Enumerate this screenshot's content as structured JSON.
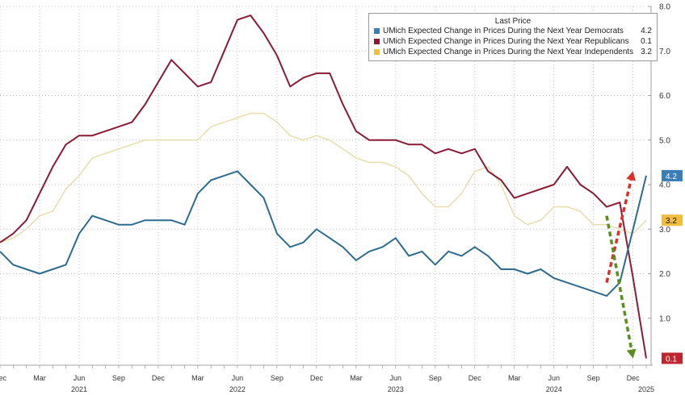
{
  "chart_data": {
    "type": "line",
    "legend_title": "Last Price",
    "legend_position": "top-right",
    "grid": true,
    "ylim": [
      0,
      8
    ],
    "y_ticks": [
      "1.0",
      "2.0",
      "3.0",
      "4.0",
      "5.0",
      "6.0",
      "7.0",
      "8.0"
    ],
    "x_start": "2020-12",
    "x_end": "2025-01",
    "x_tick_labels": [
      {
        "date": "2020-12",
        "label": "Dec"
      },
      {
        "date": "2021-03",
        "label": "Mar"
      },
      {
        "date": "2021-06",
        "label": "Jun"
      },
      {
        "date": "2021-09",
        "label": "Sep"
      },
      {
        "date": "2021-12",
        "label": "Dec"
      },
      {
        "date": "2022-03",
        "label": "Mar"
      },
      {
        "date": "2022-06",
        "label": "Jun"
      },
      {
        "date": "2022-09",
        "label": "Sep"
      },
      {
        "date": "2022-12",
        "label": "Dec"
      },
      {
        "date": "2023-03",
        "label": "Mar"
      },
      {
        "date": "2023-06",
        "label": "Jun"
      },
      {
        "date": "2023-09",
        "label": "Sep"
      },
      {
        "date": "2023-12",
        "label": "Dec"
      },
      {
        "date": "2024-03",
        "label": "Mar"
      },
      {
        "date": "2024-06",
        "label": "Jun"
      },
      {
        "date": "2024-09",
        "label": "Sep"
      },
      {
        "date": "2024-12",
        "label": "Dec"
      }
    ],
    "year_labels": [
      {
        "date": "2021-06",
        "label": "2021"
      },
      {
        "date": "2022-06",
        "label": "2022"
      },
      {
        "date": "2023-06",
        "label": "2023"
      },
      {
        "date": "2024-06",
        "label": "2024"
      },
      {
        "date": "2025-01",
        "label": "2025"
      }
    ],
    "series": [
      {
        "name": "UMich Expected Change in Prices During the Next Year Democrats",
        "last_value": "4.2",
        "color": "#2f6b8e",
        "label_color": "#3b7db5",
        "points": [
          [
            "2020-12",
            2.5
          ],
          [
            "2021-01",
            2.2
          ],
          [
            "2021-02",
            2.1
          ],
          [
            "2021-03",
            2.0
          ],
          [
            "2021-04",
            2.1
          ],
          [
            "2021-05",
            2.2
          ],
          [
            "2021-06",
            2.9
          ],
          [
            "2021-07",
            3.3
          ],
          [
            "2021-08",
            3.2
          ],
          [
            "2021-09",
            3.1
          ],
          [
            "2021-10",
            3.1
          ],
          [
            "2021-11",
            3.2
          ],
          [
            "2021-12",
            3.2
          ],
          [
            "2022-01",
            3.2
          ],
          [
            "2022-02",
            3.1
          ],
          [
            "2022-03",
            3.8
          ],
          [
            "2022-04",
            4.1
          ],
          [
            "2022-05",
            4.2
          ],
          [
            "2022-06",
            4.3
          ],
          [
            "2022-07",
            4.0
          ],
          [
            "2022-08",
            3.7
          ],
          [
            "2022-09",
            2.9
          ],
          [
            "2022-10",
            2.6
          ],
          [
            "2022-11",
            2.7
          ],
          [
            "2022-12",
            3.0
          ],
          [
            "2023-01",
            2.8
          ],
          [
            "2023-02",
            2.6
          ],
          [
            "2023-03",
            2.3
          ],
          [
            "2023-04",
            2.5
          ],
          [
            "2023-05",
            2.6
          ],
          [
            "2023-06",
            2.8
          ],
          [
            "2023-07",
            2.4
          ],
          [
            "2023-08",
            2.5
          ],
          [
            "2023-09",
            2.2
          ],
          [
            "2023-10",
            2.5
          ],
          [
            "2023-11",
            2.4
          ],
          [
            "2023-12",
            2.6
          ],
          [
            "2024-01",
            2.4
          ],
          [
            "2024-02",
            2.1
          ],
          [
            "2024-03",
            2.1
          ],
          [
            "2024-04",
            2.0
          ],
          [
            "2024-05",
            2.1
          ],
          [
            "2024-06",
            1.9
          ],
          [
            "2024-07",
            1.8
          ],
          [
            "2024-08",
            1.7
          ],
          [
            "2024-09",
            1.6
          ],
          [
            "2024-10",
            1.5
          ],
          [
            "2024-11",
            1.8
          ],
          [
            "2024-12",
            3.0
          ],
          [
            "2025-01",
            4.2
          ]
        ]
      },
      {
        "name": "UMich Expected Change in Prices During the Next Year Republicans",
        "last_value": "0.1",
        "color": "#8b1a35",
        "label_color": "#c0262f",
        "points": [
          [
            "2020-12",
            2.7
          ],
          [
            "2021-01",
            2.9
          ],
          [
            "2021-02",
            3.2
          ],
          [
            "2021-03",
            3.8
          ],
          [
            "2021-04",
            4.4
          ],
          [
            "2021-05",
            4.9
          ],
          [
            "2021-06",
            5.1
          ],
          [
            "2021-07",
            5.1
          ],
          [
            "2021-08",
            5.2
          ],
          [
            "2021-09",
            5.3
          ],
          [
            "2021-10",
            5.4
          ],
          [
            "2021-11",
            5.8
          ],
          [
            "2021-12",
            6.3
          ],
          [
            "2022-01",
            6.8
          ],
          [
            "2022-02",
            6.5
          ],
          [
            "2022-03",
            6.2
          ],
          [
            "2022-04",
            6.3
          ],
          [
            "2022-05",
            7.0
          ],
          [
            "2022-06",
            7.7
          ],
          [
            "2022-07",
            7.8
          ],
          [
            "2022-08",
            7.4
          ],
          [
            "2022-09",
            6.9
          ],
          [
            "2022-10",
            6.2
          ],
          [
            "2022-11",
            6.4
          ],
          [
            "2022-12",
            6.5
          ],
          [
            "2023-01",
            6.5
          ],
          [
            "2023-02",
            5.8
          ],
          [
            "2023-03",
            5.2
          ],
          [
            "2023-04",
            5.0
          ],
          [
            "2023-05",
            5.0
          ],
          [
            "2023-06",
            5.0
          ],
          [
            "2023-07",
            4.9
          ],
          [
            "2023-08",
            4.9
          ],
          [
            "2023-09",
            4.7
          ],
          [
            "2023-10",
            4.8
          ],
          [
            "2023-11",
            4.7
          ],
          [
            "2023-12",
            4.8
          ],
          [
            "2024-01",
            4.3
          ],
          [
            "2024-02",
            4.1
          ],
          [
            "2024-03",
            3.7
          ],
          [
            "2024-04",
            3.8
          ],
          [
            "2024-05",
            3.9
          ],
          [
            "2024-06",
            4.0
          ],
          [
            "2024-07",
            4.4
          ],
          [
            "2024-08",
            4.0
          ],
          [
            "2024-09",
            3.8
          ],
          [
            "2024-10",
            3.5
          ],
          [
            "2024-11",
            3.6
          ],
          [
            "2024-12",
            1.9
          ],
          [
            "2025-01",
            0.1
          ]
        ]
      },
      {
        "name": "UMich Expected Change in Prices During the Next Year Independents",
        "last_value": "3.2",
        "color": "#e6dcaa",
        "label_color": "#f2bd3c",
        "points": [
          [
            "2020-12",
            2.7
          ],
          [
            "2021-01",
            2.8
          ],
          [
            "2021-02",
            3.0
          ],
          [
            "2021-03",
            3.3
          ],
          [
            "2021-04",
            3.4
          ],
          [
            "2021-05",
            3.9
          ],
          [
            "2021-06",
            4.2
          ],
          [
            "2021-07",
            4.6
          ],
          [
            "2021-08",
            4.7
          ],
          [
            "2021-09",
            4.8
          ],
          [
            "2021-10",
            4.9
          ],
          [
            "2021-11",
            5.0
          ],
          [
            "2021-12",
            5.0
          ],
          [
            "2022-01",
            5.0
          ],
          [
            "2022-02",
            5.0
          ],
          [
            "2022-03",
            5.0
          ],
          [
            "2022-04",
            5.3
          ],
          [
            "2022-05",
            5.4
          ],
          [
            "2022-06",
            5.5
          ],
          [
            "2022-07",
            5.6
          ],
          [
            "2022-08",
            5.6
          ],
          [
            "2022-09",
            5.4
          ],
          [
            "2022-10",
            5.1
          ],
          [
            "2022-11",
            5.0
          ],
          [
            "2022-12",
            5.1
          ],
          [
            "2023-01",
            5.0
          ],
          [
            "2023-02",
            4.8
          ],
          [
            "2023-03",
            4.6
          ],
          [
            "2023-04",
            4.5
          ],
          [
            "2023-05",
            4.5
          ],
          [
            "2023-06",
            4.4
          ],
          [
            "2023-07",
            4.2
          ],
          [
            "2023-08",
            3.8
          ],
          [
            "2023-09",
            3.5
          ],
          [
            "2023-10",
            3.5
          ],
          [
            "2023-11",
            3.8
          ],
          [
            "2023-12",
            4.3
          ],
          [
            "2024-01",
            4.4
          ],
          [
            "2024-02",
            4.0
          ],
          [
            "2024-03",
            3.3
          ],
          [
            "2024-04",
            3.1
          ],
          [
            "2024-05",
            3.2
          ],
          [
            "2024-06",
            3.5
          ],
          [
            "2024-07",
            3.5
          ],
          [
            "2024-08",
            3.4
          ],
          [
            "2024-09",
            3.1
          ],
          [
            "2024-10",
            3.1
          ],
          [
            "2024-11",
            3.0
          ],
          [
            "2024-12",
            2.9
          ],
          [
            "2025-01",
            3.2
          ]
        ]
      }
    ],
    "annotations": [
      {
        "name": "red-dashed-up-arrow",
        "color": "#d9312a",
        "from": [
          "2024-10",
          1.8
        ],
        "to": [
          "2024-12",
          4.3
        ]
      },
      {
        "name": "green-dashed-down-arrow",
        "color": "#5a8f1e",
        "from": [
          "2024-10",
          3.3
        ],
        "to": [
          "2024-12",
          0.1
        ]
      }
    ]
  }
}
